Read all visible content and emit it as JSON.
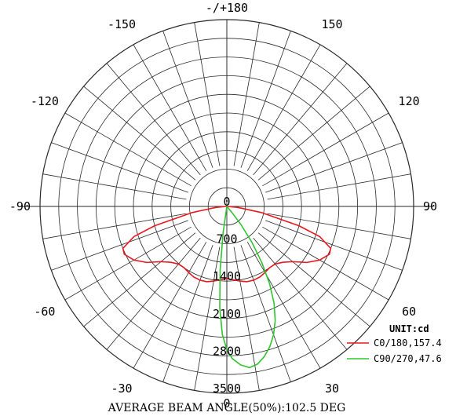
{
  "chart_data": {
    "type": "polar",
    "angle_unit": "DEG",
    "angle_tick_labels": [
      "-/+180",
      "150",
      "120",
      "90",
      "60",
      "30",
      "0",
      "-30",
      "-60",
      "-90",
      "-120",
      "-150"
    ],
    "angle_tick_values": [
      180,
      150,
      120,
      90,
      60,
      30,
      0,
      -30,
      -60,
      -90,
      -120,
      -150
    ],
    "radial_tick_labels": [
      "0",
      "700",
      "1400",
      "2100",
      "2800",
      "3500"
    ],
    "radial_tick_values": [
      0,
      700,
      1400,
      2100,
      2800,
      3500
    ],
    "rlim": [
      0,
      3500
    ],
    "zero_direction": "bottom",
    "grid": true,
    "unit_label": "UNIT:cd",
    "legend_position": "bottom-right",
    "series": [
      {
        "name": "C0/180,157.4",
        "color": "#e8181f",
        "points": [
          [
            -90,
            0
          ],
          [
            -85,
            200
          ],
          [
            -80,
            650
          ],
          [
            -75,
            1400
          ],
          [
            -72,
            1830
          ],
          [
            -68,
            2100
          ],
          [
            -65,
            2120
          ],
          [
            -60,
            2010
          ],
          [
            -55,
            1830
          ],
          [
            -50,
            1610
          ],
          [
            -45,
            1480
          ],
          [
            -40,
            1410
          ],
          [
            -35,
            1400
          ],
          [
            -30,
            1430
          ],
          [
            -25,
            1460
          ],
          [
            -20,
            1470
          ],
          [
            -15,
            1460
          ],
          [
            -10,
            1420
          ],
          [
            -5,
            1380
          ],
          [
            0,
            1350
          ],
          [
            5,
            1380
          ],
          [
            10,
            1420
          ],
          [
            15,
            1460
          ],
          [
            20,
            1470
          ],
          [
            25,
            1460
          ],
          [
            30,
            1430
          ],
          [
            35,
            1400
          ],
          [
            40,
            1410
          ],
          [
            45,
            1480
          ],
          [
            50,
            1610
          ],
          [
            55,
            1830
          ],
          [
            60,
            2010
          ],
          [
            65,
            2120
          ],
          [
            68,
            2100
          ],
          [
            72,
            1830
          ],
          [
            75,
            1400
          ],
          [
            80,
            650
          ],
          [
            85,
            200
          ],
          [
            90,
            0
          ]
        ]
      },
      {
        "name": "C90/270,47.6",
        "color": "#2ec52e",
        "points": [
          [
            -10,
            0
          ],
          [
            -8,
            500
          ],
          [
            -6,
            1200
          ],
          [
            -4,
            1900
          ],
          [
            -2,
            2400
          ],
          [
            0,
            2680
          ],
          [
            2,
            2850
          ],
          [
            5,
            2980
          ],
          [
            8,
            3050
          ],
          [
            11,
            3010
          ],
          [
            14,
            2900
          ],
          [
            17,
            2750
          ],
          [
            20,
            2560
          ],
          [
            23,
            2320
          ],
          [
            26,
            2020
          ],
          [
            29,
            1650
          ],
          [
            32,
            1230
          ],
          [
            35,
            820
          ],
          [
            38,
            420
          ],
          [
            40,
            150
          ],
          [
            41,
            0
          ]
        ]
      }
    ]
  },
  "footer": {
    "beam_angle_text": "AVERAGE BEAM ANGLE(50%):102.5 DEG"
  }
}
